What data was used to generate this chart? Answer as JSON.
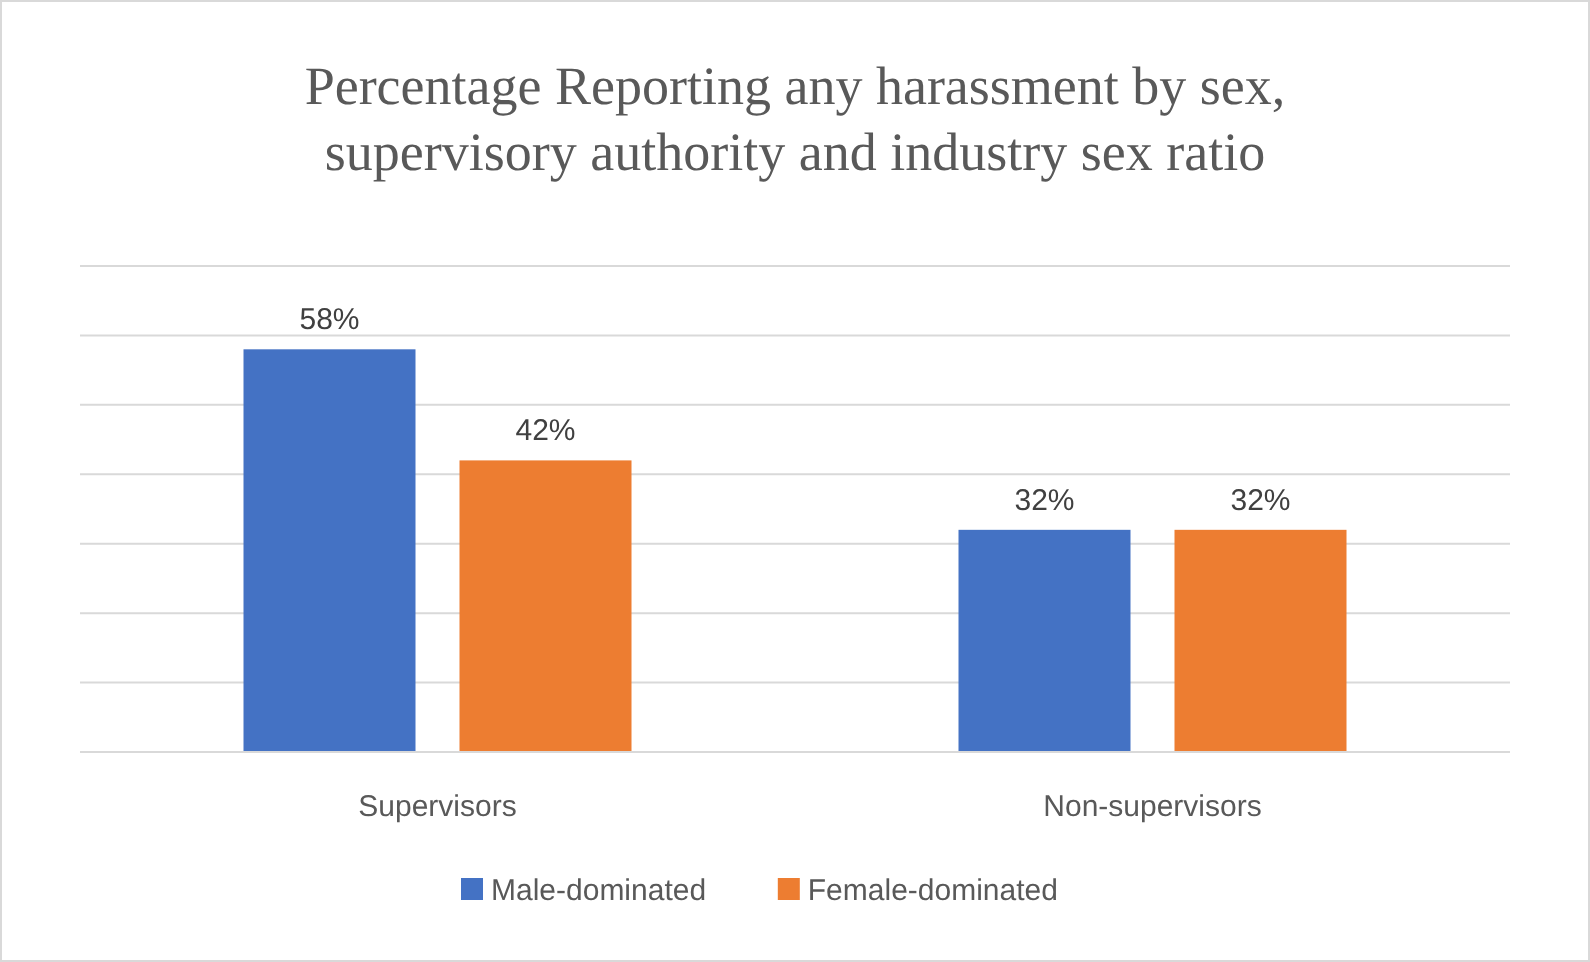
{
  "chart_data": {
    "type": "bar",
    "title": "Percentage Reporting any harassment by sex,\nsupervisory authority and industry sex ratio",
    "categories": [
      "Supervisors",
      "Non-supervisors"
    ],
    "series": [
      {
        "name": "Male-dominated",
        "color": "#4472c4",
        "values": [
          58,
          32
        ],
        "value_labels": [
          "58%",
          "32%"
        ]
      },
      {
        "name": "Female-dominated",
        "color": "#ed7d31",
        "values": [
          42,
          32
        ],
        "value_labels": [
          "42%",
          "32%"
        ]
      }
    ],
    "ylim": [
      0,
      70
    ],
    "yticks": [
      {
        "value": 0,
        "label": null
      },
      {
        "value": 10,
        "label": null
      },
      {
        "value": 20,
        "label": null
      },
      {
        "value": 30,
        "label": null
      },
      {
        "value": 40,
        "label": null
      },
      {
        "value": 50,
        "label": null
      },
      {
        "value": 60,
        "label": null
      },
      {
        "value": 70,
        "label": null
      }
    ],
    "grid": "y",
    "tick_labels": "x",
    "legend": "bottom"
  }
}
